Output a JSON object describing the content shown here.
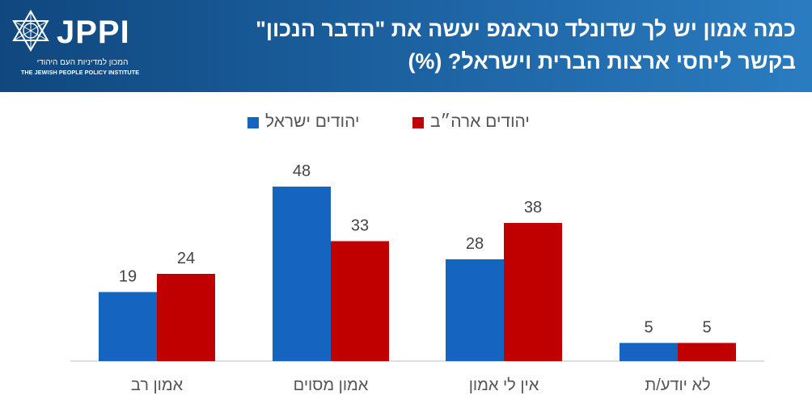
{
  "brand": {
    "logo_text": "JPPI",
    "logo_subtitle_he": "המכון למדיניות העם היהודי",
    "logo_subtitle_en": "THE JEWISH PEOPLE POLICY INSTITUTE"
  },
  "colors": {
    "header_dark": "#10477e",
    "header_light": "#2a7cc0",
    "series_israel": "#1565c0",
    "series_us": "#c00000",
    "axis": "#bfbfbf"
  },
  "chart_data": {
    "type": "bar",
    "title_line1": "כמה אמון יש לך שדונלד טראמפ יעשה את \"הדבר הנכון\"",
    "title_line2": "בקשר ליחסי ארצות הברית וישראל? (%)",
    "categories": [
      "אמון רב",
      "אמון מסוים",
      "אין לי אמון",
      "לא יודע/ת"
    ],
    "series": [
      {
        "name": "יהודים ישראל",
        "color": "#1565c0",
        "values": [
          19,
          48,
          28,
          5
        ]
      },
      {
        "name": "יהודים ארה״ב",
        "color": "#c00000",
        "values": [
          24,
          33,
          38,
          5
        ]
      }
    ],
    "ylim": [
      0,
      50
    ],
    "grid": false,
    "legend_position": "top-center",
    "data_labels": true
  }
}
